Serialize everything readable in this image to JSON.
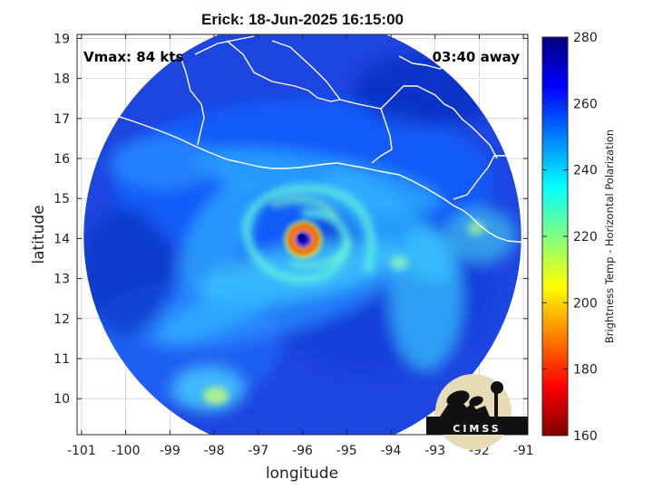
{
  "title": "Erick: 18-Jun-2025 16:15:00",
  "annotations": {
    "vmax": "Vmax: 84 kts",
    "time_offset": "03:40 away"
  },
  "x_axis": {
    "label": "longitude",
    "range": [
      -101.1,
      -90.9
    ],
    "ticks": [
      "-101",
      "-100",
      "-99",
      "-98",
      "-97",
      "-96",
      "-95",
      "-94",
      "-93",
      "-92",
      "-91"
    ]
  },
  "y_axis": {
    "label": "latitude",
    "range": [
      9.1,
      19.1
    ],
    "ticks": [
      "10",
      "11",
      "12",
      "13",
      "14",
      "15",
      "16",
      "17",
      "18",
      "19"
    ]
  },
  "colorbar": {
    "label": "Brightness Temp - Horizontal Polarization",
    "range": [
      160,
      280
    ],
    "ticks": [
      "160",
      "180",
      "200",
      "220",
      "240",
      "260",
      "280"
    ],
    "colormap": "jet"
  },
  "storm": {
    "name": "Erick",
    "center_lon": -96.0,
    "center_lat": 14.0
  },
  "swath": {
    "center_lon": -96.0,
    "center_lat": 14.05,
    "radius_deg": 4.95
  },
  "logo": {
    "text": "CIMSS"
  },
  "colors": {
    "coastline": "#ffffff",
    "background": "#ffffff",
    "grid": "#bfbfbf"
  }
}
